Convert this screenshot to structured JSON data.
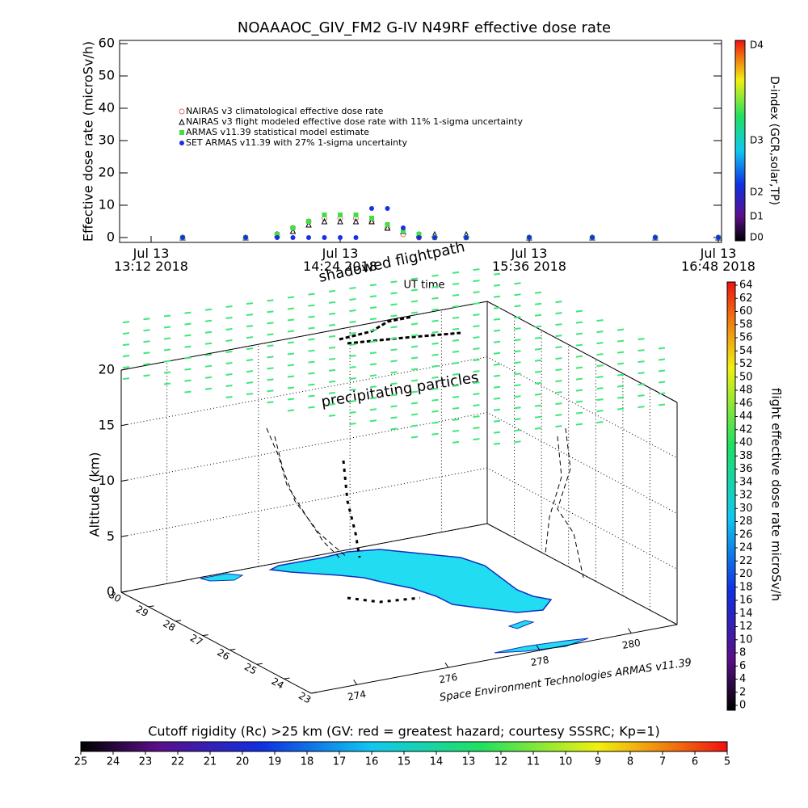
{
  "chart_data": [
    {
      "type": "line",
      "title": "NOAAAOC_GIV_FM2 G-IV    N49RF  effective dose rate",
      "y_label": "Effective dose rate (microSv/h)",
      "x_label": "UT time",
      "x": [
        "2018-07-13T13:24",
        "2018-07-13T13:48",
        "2018-07-13T14:00",
        "2018-07-13T14:06",
        "2018-07-13T14:12",
        "2018-07-13T14:18",
        "2018-07-13T14:24",
        "2018-07-13T14:30",
        "2018-07-13T14:36",
        "2018-07-13T14:42",
        "2018-07-13T14:48",
        "2018-07-13T14:54",
        "2018-07-13T15:00",
        "2018-07-13T15:12",
        "2018-07-13T15:36",
        "2018-07-13T16:00",
        "2018-07-13T16:24",
        "2018-07-13T16:48"
      ],
      "xlim": [
        "2018-07-13T13:12",
        "2018-07-13T16:48"
      ],
      "xticks": [
        {
          "value": "2018-07-13T13:12",
          "label": "Jul 13\n13:12 2018"
        },
        {
          "value": "2018-07-13T14:24",
          "label": "Jul 13\n14:24 2018"
        },
        {
          "value": "2018-07-13T15:36",
          "label": "Jul 13\n15:36 2018"
        },
        {
          "value": "2018-07-13T16:48",
          "label": "Jul 13\n16:48 2018"
        }
      ],
      "ylim": [
        0,
        60
      ],
      "yticks": [
        0,
        10,
        20,
        30,
        40,
        50,
        60
      ],
      "series": [
        {
          "name": "NAIRAS v3 climatological effective dose rate",
          "color": "#e07070",
          "marker": "open-circle",
          "values": [
            0,
            0,
            1,
            3,
            5,
            6,
            6,
            6,
            5,
            3,
            1,
            0,
            0,
            0,
            0,
            0,
            0,
            0
          ]
        },
        {
          "name": "NAIRAS v3 flight modeled effective dose rate with 11% 1-sigma uncertainty",
          "color": "#000000",
          "marker": "open-triangle",
          "values": [
            0,
            0,
            1,
            2,
            4,
            5,
            5,
            5,
            5,
            3,
            2,
            1,
            1,
            1,
            0,
            0,
            0,
            0
          ]
        },
        {
          "name": "ARMAS v11.39 statistical model estimate",
          "color": "#44dd44",
          "marker": "square",
          "values": [
            0,
            0,
            1,
            3,
            5,
            7,
            7,
            7,
            6,
            4,
            2,
            1,
            0,
            0,
            0,
            0,
            0,
            0
          ]
        },
        {
          "name": "SET ARMAS v11.39 with 27% 1-sigma uncertainty",
          "color": "#1a2ee8",
          "marker": "dot",
          "values": [
            0,
            0,
            0,
            0,
            0,
            0,
            0,
            0,
            9,
            9,
            3,
            0,
            0,
            0,
            0,
            0,
            0,
            0
          ]
        }
      ],
      "colorbar": {
        "title": "D-index (GCR,solar,TP)",
        "labels": [
          "D0",
          "D1",
          "D2",
          "D3",
          "D4"
        ]
      }
    },
    {
      "type": "3d",
      "annotations": [
        "shadowed flightpath",
        "precipitating particles"
      ],
      "z_label": "Altitude (km)",
      "zlim": [
        0,
        20
      ],
      "zticks": [
        0,
        5,
        10,
        15,
        20
      ],
      "ylim": [
        23,
        30
      ],
      "yticks": [
        30,
        29,
        28,
        27,
        26,
        25,
        24,
        23
      ],
      "xlim": [
        273,
        281
      ],
      "xticks": [
        274,
        276,
        278,
        280
      ],
      "credit": "Space Environment Technologies ARMAS v11.39",
      "colorbar": {
        "title": "flight effective dose rate microSv/h",
        "ylim": [
          0,
          64
        ],
        "yticks": [
          0,
          2,
          4,
          6,
          8,
          10,
          12,
          14,
          16,
          18,
          20,
          22,
          24,
          26,
          28,
          30,
          32,
          34,
          36,
          38,
          40,
          42,
          44,
          46,
          48,
          50,
          52,
          54,
          56,
          58,
          60,
          62,
          64
        ]
      }
    },
    {
      "type": "colorbar",
      "title": "Cutoff rigidity (Rc) >25 km (GV: red = greatest hazard; courtesy SSSRC; Kp=1)",
      "xlim": [
        25,
        5
      ],
      "xticks": [
        25,
        24,
        23,
        22,
        21,
        20,
        19,
        18,
        17,
        16,
        15,
        14,
        13,
        12,
        11,
        10,
        9,
        8,
        7,
        6,
        5
      ]
    }
  ]
}
